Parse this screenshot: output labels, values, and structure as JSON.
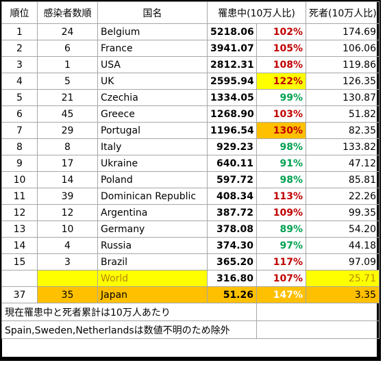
{
  "headers": [
    "順位",
    "感染者数順",
    "国名",
    "罹患中(10万人比)",
    "",
    "死者(10万人比)"
  ],
  "rows": [
    {
      "rank": "1",
      "cases_rank": "24",
      "country": "Belgium",
      "active": "5218.06",
      "ratio": "102%",
      "ratio_color": "red",
      "deaths": "174.69"
    },
    {
      "rank": "2",
      "cases_rank": "6",
      "country": "France",
      "active": "3941.07",
      "ratio": "105%",
      "ratio_color": "red",
      "deaths": "106.06"
    },
    {
      "rank": "3",
      "cases_rank": "1",
      "country": "USA",
      "active": "2812.31",
      "ratio": "108%",
      "ratio_color": "red",
      "deaths": "119.86"
    },
    {
      "rank": "4",
      "cases_rank": "5",
      "country": "UK",
      "active": "2595.94",
      "ratio": "122%",
      "ratio_color": "red",
      "ratio_bg": "yellow",
      "deaths": "126.35"
    },
    {
      "rank": "5",
      "cases_rank": "21",
      "country": "Czechia",
      "active": "1334.05",
      "ratio": "99%",
      "ratio_color": "green",
      "deaths": "130.87"
    },
    {
      "rank": "6",
      "cases_rank": "45",
      "country": "Greece",
      "active": "1268.90",
      "ratio": "103%",
      "ratio_color": "red",
      "deaths": "51.82"
    },
    {
      "rank": "7",
      "cases_rank": "29",
      "country": "Portugal",
      "active": "1196.54",
      "ratio": "130%",
      "ratio_color": "red",
      "ratio_bg": "orange",
      "deaths": "82.35"
    },
    {
      "rank": "8",
      "cases_rank": "8",
      "country": "Italy",
      "active": "929.23",
      "ratio": "98%",
      "ratio_color": "green",
      "deaths": "133.82"
    },
    {
      "rank": "9",
      "cases_rank": "17",
      "country": "Ukraine",
      "active": "640.11",
      "ratio": "91%",
      "ratio_color": "green",
      "deaths": "47.12"
    },
    {
      "rank": "10",
      "cases_rank": "14",
      "country": "Poland",
      "active": "597.72",
      "ratio": "98%",
      "ratio_color": "green",
      "deaths": "85.81"
    },
    {
      "rank": "11",
      "cases_rank": "39",
      "country": "Dominican Republic",
      "active": "408.34",
      "ratio": "113%",
      "ratio_color": "red",
      "deaths": "22.26"
    },
    {
      "rank": "12",
      "cases_rank": "12",
      "country": "Argentina",
      "active": "387.72",
      "ratio": "109%",
      "ratio_color": "red",
      "deaths": "99.35"
    },
    {
      "rank": "13",
      "cases_rank": "10",
      "country": "Germany",
      "active": "378.08",
      "ratio": "89%",
      "ratio_color": "green",
      "deaths": "54.20"
    },
    {
      "rank": "14",
      "cases_rank": "4",
      "country": "Russia",
      "active": "374.30",
      "ratio": "97%",
      "ratio_color": "green",
      "deaths": "44.18"
    },
    {
      "rank": "15",
      "cases_rank": "3",
      "country": "Brazil",
      "active": "365.20",
      "ratio": "117%",
      "ratio_color": "red",
      "deaths": "97.09"
    }
  ],
  "world": {
    "rank": "",
    "cases_rank": "",
    "country": "World",
    "active": "316.80",
    "ratio": "107%",
    "deaths": "25.71"
  },
  "japan": {
    "rank": "37",
    "cases_rank": "35",
    "country": "Japan",
    "active": "51.26",
    "ratio": "147%",
    "deaths": "3.35"
  },
  "notes": [
    "現在罹患中と死者累計は10万人あたり",
    "Spain,Sweden,Netherlandsは数値不明のため除外"
  ],
  "colors": {
    "red": "#c00000",
    "green": "#00a050",
    "yellow": "#ffff00",
    "orange": "#ffc000",
    "world_text": "#b8860b"
  }
}
